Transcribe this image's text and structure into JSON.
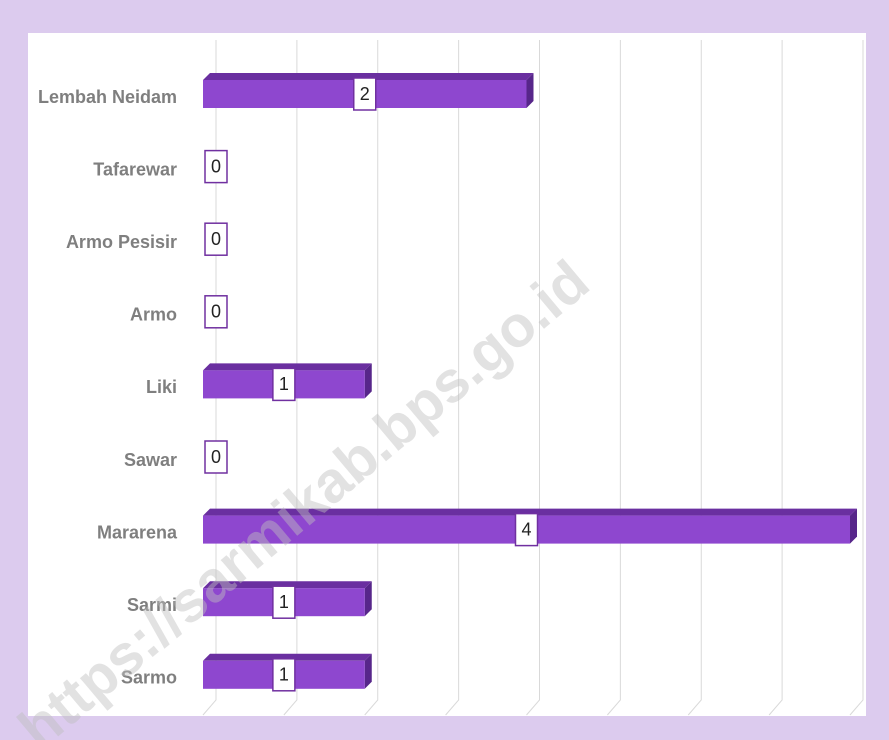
{
  "chart_data": {
    "type": "bar",
    "orientation": "horizontal",
    "categories": [
      "Lembah Neidam",
      "Tafarewar",
      "Armo Pesisir",
      "Armo",
      "Liki",
      "Sawar",
      "Mararena",
      "Sarmi",
      "Sarmo"
    ],
    "values": [
      2,
      0,
      0,
      0,
      1,
      0,
      4,
      1,
      1
    ],
    "color": "#8e47cf",
    "xlim": [
      0,
      4
    ],
    "xticks": [
      0,
      0.5,
      1,
      1.5,
      2,
      2.5,
      3,
      3.5,
      4
    ],
    "grid": true
  },
  "watermark": "https://sarmikab.bps.go.id"
}
